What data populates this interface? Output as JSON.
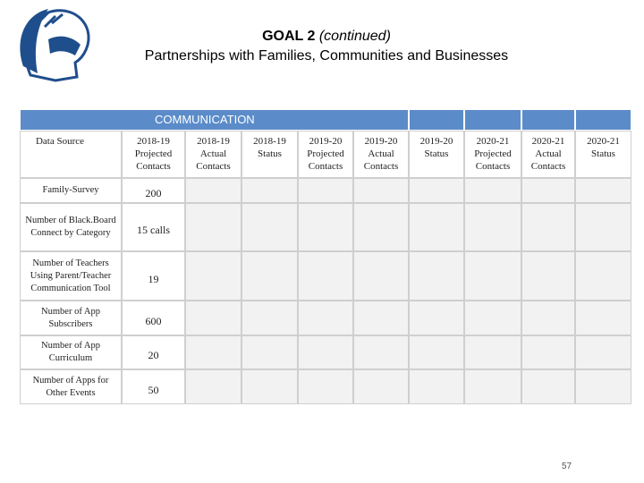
{
  "header": {
    "title_bold": "GOAL 2",
    "title_italic": "(continued)",
    "subtitle": "Partnerships with Families, Communities and Businesses"
  },
  "table": {
    "section": "COMMUNICATION",
    "columns": [
      "Data Source",
      "2018-19 Projected Contacts",
      "2018-19 Actual Contacts",
      "2018-19 Status",
      "2019-20 Projected Contacts",
      "2019-20 Actual Contacts",
      "2019-20 Status",
      "2020-21 Projected Contacts",
      "2020-21 Actual Contacts",
      "2020-21 Status"
    ],
    "rows": [
      [
        "Family-Survey",
        "200"
      ],
      [
        "Number of Black.Board Connect by Category",
        "15 calls"
      ],
      [
        "Number of Teachers Using Parent/Teacher Communication Tool",
        "19"
      ],
      [
        "Number of App Subscribers",
        "600"
      ],
      [
        "Number of App Curriculum",
        "20"
      ],
      [
        "Number of Apps for Other Events",
        "50"
      ]
    ]
  },
  "page_number": "57"
}
